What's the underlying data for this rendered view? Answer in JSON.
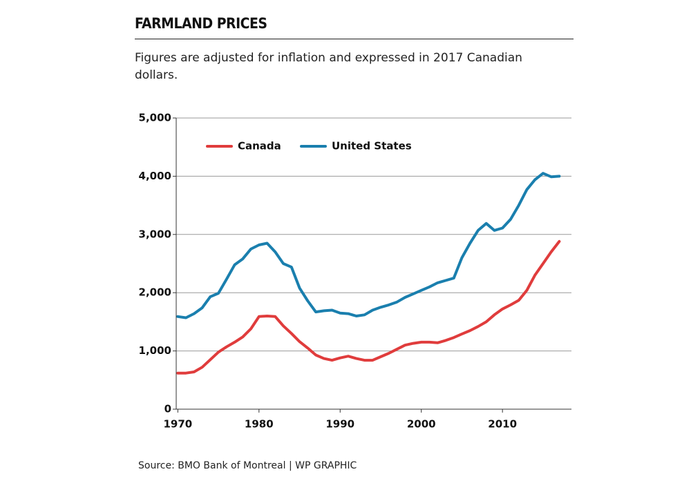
{
  "chart_data": {
    "type": "line",
    "title": "FARMLAND PRICES",
    "subtitle": "Figures are adjusted for inflation and expressed in 2017 Canadian dollars.",
    "source": "Source: BMO Bank of Montreal | WP GRAPHIC",
    "x": [
      1970,
      1971,
      1972,
      1973,
      1974,
      1975,
      1976,
      1977,
      1978,
      1979,
      1980,
      1981,
      1982,
      1983,
      1984,
      1985,
      1986,
      1987,
      1988,
      1989,
      1990,
      1991,
      1992,
      1993,
      1994,
      1995,
      1996,
      1997,
      1998,
      1999,
      2000,
      2001,
      2002,
      2003,
      2004,
      2005,
      2006,
      2007,
      2008,
      2009,
      2010,
      2011,
      2012,
      2013,
      2014,
      2015,
      2016,
      2017
    ],
    "series": [
      {
        "name": "Canada",
        "color": "#e03c3c",
        "values": [
          620,
          620,
          640,
          720,
          850,
          980,
          1070,
          1150,
          1240,
          1380,
          1590,
          1600,
          1590,
          1430,
          1300,
          1160,
          1050,
          930,
          870,
          840,
          880,
          910,
          870,
          840,
          840,
          900,
          960,
          1030,
          1100,
          1130,
          1150,
          1150,
          1140,
          1180,
          1230,
          1290,
          1350,
          1420,
          1500,
          1620,
          1720,
          1790,
          1870,
          2040,
          2300,
          2500,
          2700,
          2880
        ]
      },
      {
        "name": "United States",
        "color": "#1a7fae",
        "values": [
          1590,
          1570,
          1640,
          1740,
          1930,
          1990,
          2230,
          2480,
          2580,
          2750,
          2820,
          2850,
          2700,
          2500,
          2440,
          2080,
          1860,
          1670,
          1690,
          1700,
          1650,
          1640,
          1600,
          1620,
          1700,
          1750,
          1790,
          1840,
          1920,
          1980,
          2040,
          2100,
          2170,
          2210,
          2250,
          2600,
          2850,
          3070,
          3190,
          3070,
          3110,
          3260,
          3500,
          3770,
          3940,
          4050,
          3990,
          4000
        ]
      }
    ],
    "xlim": [
      1969.8,
      2018.5
    ],
    "xticks": [
      1970,
      1980,
      1990,
      2000,
      2010
    ],
    "ylim": [
      0,
      5000
    ],
    "yticks": [
      0,
      {
        "value": 1000,
        "label": "1,000"
      },
      {
        "value": 2000,
        "label": "2,000"
      },
      {
        "value": 3000,
        "label": "3,000"
      },
      {
        "value": 4000,
        "label": "4,000"
      },
      {
        "value": 5000,
        "label": "5,000"
      }
    ],
    "grid": true
  }
}
